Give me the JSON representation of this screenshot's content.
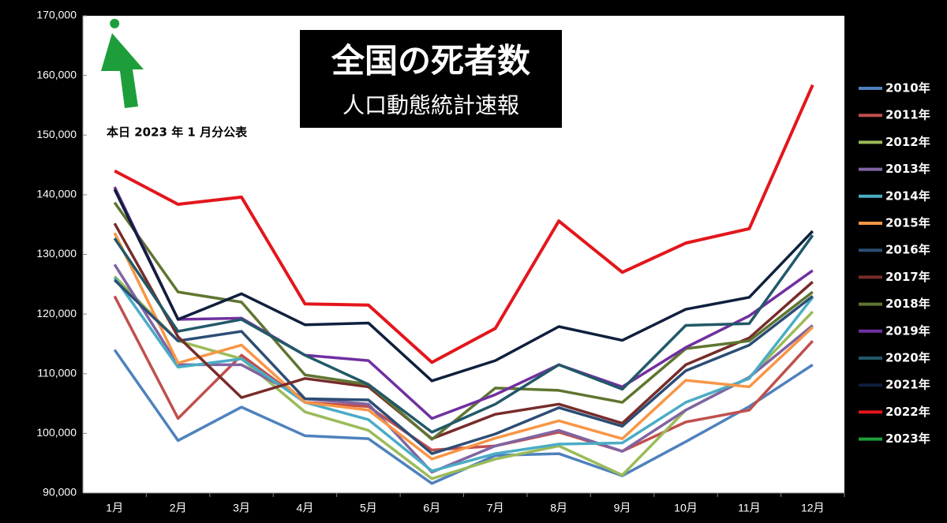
{
  "chart_data": {
    "type": "line",
    "title": "全国の死者数",
    "subtitle": "人口動態統計速報",
    "annotation": "本日 2023 年 1 月分公表",
    "categories": [
      "1月",
      "2月",
      "3月",
      "4月",
      "5月",
      "6月",
      "7月",
      "8月",
      "9月",
      "10月",
      "11月",
      "12月"
    ],
    "ylim": [
      90000,
      170000
    ],
    "yticks": [
      {
        "value": 90000,
        "label": "90,000"
      },
      {
        "value": 100000,
        "label": "100,000"
      },
      {
        "value": 110000,
        "label": "110,000"
      },
      {
        "value": 120000,
        "label": "120,000"
      },
      {
        "value": 130000,
        "label": "130,000"
      },
      {
        "value": 140000,
        "label": "140,000"
      },
      {
        "value": 150000,
        "label": "150,000"
      },
      {
        "value": 160000,
        "label": "160,000"
      },
      {
        "value": 170000,
        "label": "170,000"
      }
    ],
    "series": [
      {
        "name": "2010年",
        "color": "#4f81bd",
        "values": [
          114000,
          98800,
          104400,
          99600,
          99100,
          91600,
          96300,
          96600,
          92900,
          98600,
          104500,
          111500
        ]
      },
      {
        "name": "2011年",
        "color": "#c0504d",
        "values": [
          123000,
          102500,
          113100,
          105200,
          104500,
          97200,
          97900,
          100200,
          97000,
          101900,
          103900,
          115500
        ]
      },
      {
        "name": "2012年",
        "color": "#9bbb59",
        "values": [
          126300,
          115500,
          112500,
          103600,
          100500,
          92400,
          95700,
          97900,
          93000,
          103900,
          109400,
          120400
        ]
      },
      {
        "name": "2013年",
        "color": "#8064a2",
        "values": [
          128300,
          111500,
          111500,
          105800,
          104900,
          93500,
          97900,
          100500,
          97000,
          103900,
          109400,
          118100
        ]
      },
      {
        "name": "2014年",
        "color": "#4bacc6",
        "values": [
          126100,
          111100,
          112500,
          105200,
          102300,
          93700,
          96600,
          98200,
          98400,
          105200,
          109200,
          122800
        ]
      },
      {
        "name": "2015年",
        "color": "#f79646",
        "values": [
          133600,
          111800,
          114800,
          105200,
          103900,
          95700,
          99200,
          102100,
          99100,
          108900,
          107800,
          117800
        ]
      },
      {
        "name": "2016年",
        "color": "#2c4d75",
        "values": [
          125700,
          115500,
          117100,
          105800,
          105600,
          96600,
          99900,
          104300,
          101200,
          110500,
          114800,
          123000
        ]
      },
      {
        "name": "2017年",
        "color": "#772c2a",
        "values": [
          135200,
          116200,
          106000,
          109200,
          107800,
          99100,
          103200,
          104900,
          101700,
          111500,
          116000,
          125400
        ]
      },
      {
        "name": "2018年",
        "color": "#5f7530",
        "values": [
          138700,
          123700,
          122000,
          109800,
          108200,
          99000,
          107600,
          107200,
          105200,
          114200,
          115500,
          123700
        ]
      },
      {
        "name": "2019年",
        "color": "#7030a0",
        "values": [
          141300,
          119100,
          119300,
          113100,
          112200,
          102500,
          106500,
          111500,
          107800,
          114400,
          119700,
          127300
        ]
      },
      {
        "name": "2020年",
        "color": "#215968",
        "values": [
          132700,
          117100,
          119100,
          113100,
          108200,
          100200,
          104900,
          111500,
          107400,
          118100,
          118400,
          133200
        ]
      },
      {
        "name": "2021年",
        "color": "#0f1f3d",
        "values": [
          140900,
          119100,
          123400,
          118200,
          118500,
          108800,
          112200,
          117900,
          115600,
          120800,
          122800,
          133900
        ]
      },
      {
        "name": "2022年",
        "color": "#e3161c",
        "values": [
          144000,
          138400,
          139600,
          121700,
          121500,
          111900,
          117600,
          135600,
          127000,
          131900,
          134300,
          158400
        ]
      },
      {
        "name": "2023年",
        "color": "#1e9e3a",
        "values": [
          168700,
          null,
          null,
          null,
          null,
          null,
          null,
          null,
          null,
          null,
          null,
          null
        ]
      }
    ]
  }
}
